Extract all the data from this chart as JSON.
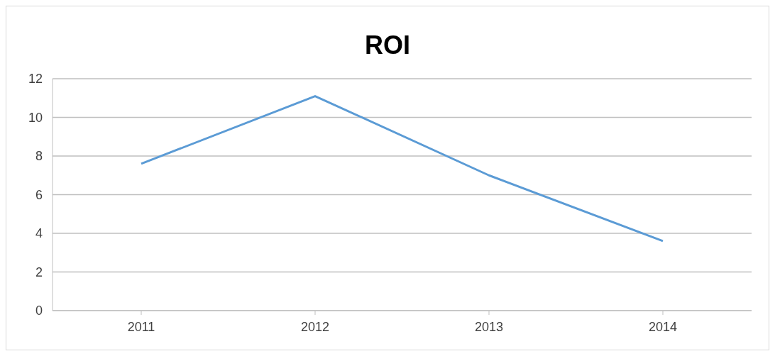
{
  "chart_data": {
    "type": "line",
    "title": "ROI",
    "categories": [
      "2011",
      "2012",
      "2013",
      "2014"
    ],
    "series": [
      {
        "color": "#5b9bd5",
        "values": [
          7.6,
          11.1,
          7.0,
          3.6
        ]
      }
    ],
    "ylim": [
      0,
      12
    ],
    "yticks": [
      0,
      2,
      4,
      6,
      8,
      10,
      12
    ],
    "grid": "y",
    "marker": "none",
    "line_style": "solid"
  }
}
